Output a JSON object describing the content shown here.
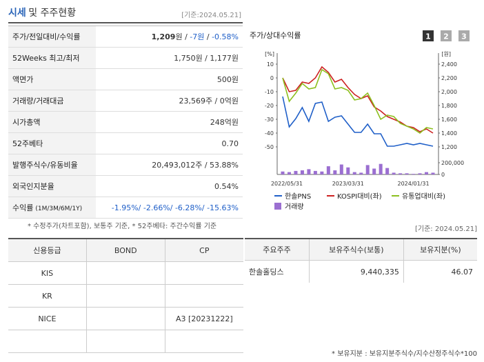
{
  "header": {
    "title": "시세",
    "title_rest": "및 주주현황",
    "date": "[기준:2024.05.21]"
  },
  "price_table": {
    "rows": [
      {
        "label": [
          "주가/전일대비/수익률"
        ],
        "value": [
          "1,209",
          "원 / ",
          "-7원",
          " / ",
          "-0.58%"
        ]
      },
      {
        "label": [
          "52Weeks 최고/최저"
        ],
        "value": [
          "1,750원 / 1,177원"
        ]
      },
      {
        "label": [
          "액면가"
        ],
        "value": [
          "500원"
        ]
      },
      {
        "label": [
          "거래량/거래대금"
        ],
        "value": [
          "23,569주 / 0억원"
        ]
      },
      {
        "label": [
          "시가총액"
        ],
        "value": [
          "248억원"
        ]
      },
      {
        "label": [
          "52주베타"
        ],
        "value": [
          "0.70"
        ]
      },
      {
        "label": [
          "발행주식수/유동비율"
        ],
        "value": [
          "20,493,012주 / 53.88%"
        ]
      },
      {
        "label": [
          "외국인지분율"
        ],
        "value": [
          "0.54%"
        ]
      },
      {
        "label": [
          "수익률",
          "(1M/3M/6M/1Y)"
        ],
        "value": [
          "-1.95%/ -2.66%/ -6.28%/ -15.63%"
        ]
      }
    ],
    "note": "* 수정주가(차트포함), 보통주 기준, * 52주베타: 주간수익률 기준"
  },
  "chart": {
    "type": "line",
    "title": "주가/상대수익률",
    "tabs": [
      "1",
      "2",
      "3"
    ],
    "left_unit": "[%]",
    "right_unit": "[원]",
    "categories": [
      "2022/05/31",
      null,
      null,
      null,
      null,
      null,
      null,
      null,
      null,
      null,
      "2023/03/31",
      null,
      null,
      null,
      null,
      null,
      null,
      null,
      null,
      null,
      "2024/01/31",
      null,
      null,
      null
    ],
    "ylim": [
      -50,
      10
    ],
    "yticks": [
      10,
      0,
      -10,
      -20,
      -30,
      -40,
      -50
    ],
    "y2lim": [
      1200,
      2400
    ],
    "y2ticks": [
      {
        "value": 2400,
        "label": "2,400"
      },
      {
        "value": 2200,
        "label": "2,200"
      },
      {
        "value": 2000,
        "label": "2,000"
      },
      {
        "value": 1800,
        "label": "1,800"
      },
      {
        "value": 1600,
        "label": "1,600"
      },
      {
        "value": 1400,
        "label": "1,400"
      },
      {
        "value": 1200,
        "label": "1,200"
      }
    ],
    "vlim": [
      0,
      200000
    ],
    "vticks": [
      {
        "value": 200000,
        "label": "200,000"
      },
      0
    ],
    "series": [
      {
        "name": "한솔PNS",
        "color": "#1f5fc8",
        "axis": "y2",
        "values": [
          1930,
          1490,
          1610,
          1770,
          1570,
          1830,
          1850,
          1570,
          1630,
          1650,
          1530,
          1410,
          1410,
          1530,
          1390,
          1390,
          1210,
          1210,
          1230,
          1250,
          1230,
          1250,
          1230,
          1210
        ]
      },
      {
        "name": "KOSPI대비(좌)",
        "color": "#cc2020",
        "values": [
          0,
          -10,
          -9,
          -3,
          -4,
          0,
          8,
          4,
          -3,
          -1,
          -7,
          -12,
          -15,
          -13,
          -21,
          -24,
          -28,
          -30,
          -32,
          -35,
          -36,
          -39,
          -37,
          -40
        ]
      },
      {
        "name": "유통업대비(좌)",
        "color": "#8cbf1e",
        "values": [
          0,
          -17,
          -11,
          -4,
          -8,
          -7,
          6,
          3,
          -8,
          -7,
          -9,
          -16,
          -15,
          -11,
          -20,
          -30,
          -27,
          -28,
          -33,
          -35,
          -37,
          -40,
          -36,
          -37
        ]
      },
      {
        "name": "거래량",
        "color": "#9b6fd1",
        "type": "bar",
        "axis": "volume",
        "values": [
          50000,
          40000,
          60000,
          70000,
          90000,
          60000,
          50000,
          140000,
          70000,
          170000,
          120000,
          40000,
          30000,
          160000,
          100000,
          180000,
          110000,
          30000,
          20000,
          20000,
          10000,
          20000,
          40000,
          30000
        ]
      }
    ]
  },
  "date2": "[기준: 2024.05.21]",
  "credit_table": {
    "header": [
      "신용등급",
      "BOND",
      "CP"
    ],
    "rows": [
      [
        "KIS",
        "",
        ""
      ],
      [
        "KR",
        "",
        ""
      ],
      [
        "NICE",
        "",
        "A3 [20231222]"
      ],
      [
        "",
        "",
        ""
      ]
    ]
  },
  "holder_table": {
    "header": [
      "주요주주",
      "보유주식수(보통)",
      "보유지분(%)"
    ],
    "rows": [
      [
        "한솔홀딩스",
        "9,440,335",
        "46.07"
      ]
    ]
  },
  "holder_note": "* 보유지분 : 보유지분주식수/지수산정주식수*100"
}
